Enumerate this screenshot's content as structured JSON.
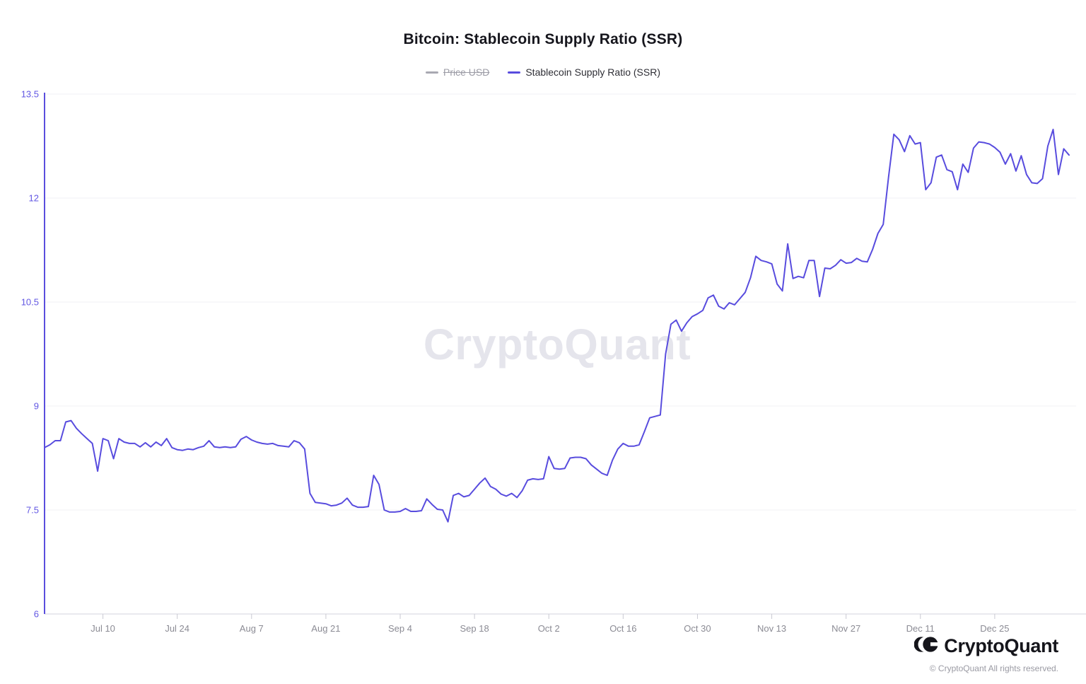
{
  "header": {
    "title": "Bitcoin: Stablecoin Supply Ratio (SSR)"
  },
  "legend": [
    {
      "label": "Price USD",
      "color": "#a9a9b2",
      "disabled": true
    },
    {
      "label": "Stablecoin Supply Ratio (SSR)",
      "color": "#584CDE",
      "disabled": false
    }
  ],
  "watermark": "CryptoQuant",
  "footer": {
    "brand": "CryptoQuant",
    "logo_icon": "cryptoquant-cq-mark",
    "copyright": "© CryptoQuant All rights reserved."
  },
  "colors": {
    "line": "#584CDE",
    "y_axis": "#5a4edd",
    "y_label": "#6257e3",
    "x_label": "#8b8b94",
    "grid": "#f1f1f5",
    "baseline": "#e2e2e8",
    "tick": "#c9c9d2"
  },
  "chart_data": {
    "type": "line",
    "title": "Bitcoin: Stablecoin Supply Ratio (SSR)",
    "series_name": "Stablecoin Supply Ratio (SSR)",
    "hidden_series": "Price USD",
    "frequency": "daily",
    "start_date": "Jun 29",
    "end_date": "Jan 8",
    "ylim": [
      6,
      13.5
    ],
    "y_ticks": [
      6,
      7.5,
      9,
      10.5,
      12,
      13.5
    ],
    "grid": "horizontal-only",
    "legend_position": "top-center",
    "x_ticks": [
      {
        "label": "Jul 10",
        "index": 11
      },
      {
        "label": "Jul 24",
        "index": 25
      },
      {
        "label": "Aug 7",
        "index": 39
      },
      {
        "label": "Aug 21",
        "index": 53
      },
      {
        "label": "Sep 4",
        "index": 67
      },
      {
        "label": "Sep 18",
        "index": 81
      },
      {
        "label": "Oct 2",
        "index": 95
      },
      {
        "label": "Oct 16",
        "index": 109
      },
      {
        "label": "Oct 30",
        "index": 123
      },
      {
        "label": "Nov 13",
        "index": 137
      },
      {
        "label": "Nov 27",
        "index": 151
      },
      {
        "label": "Dec 11",
        "index": 165
      },
      {
        "label": "Dec 25",
        "index": 179
      }
    ],
    "values": [
      8.4,
      8.44,
      8.5,
      8.5,
      8.77,
      8.79,
      8.68,
      8.6,
      8.53,
      8.46,
      8.06,
      8.53,
      8.5,
      8.24,
      8.53,
      8.48,
      8.46,
      8.46,
      8.41,
      8.47,
      8.41,
      8.48,
      8.43,
      8.53,
      8.4,
      8.37,
      8.36,
      8.38,
      8.37,
      8.4,
      8.42,
      8.5,
      8.41,
      8.4,
      8.41,
      8.4,
      8.41,
      8.52,
      8.56,
      8.51,
      8.48,
      8.46,
      8.45,
      8.46,
      8.43,
      8.42,
      8.41,
      8.5,
      8.47,
      8.38,
      7.74,
      7.61,
      7.6,
      7.59,
      7.56,
      7.57,
      7.6,
      7.67,
      7.57,
      7.54,
      7.54,
      7.55,
      8.0,
      7.87,
      7.5,
      7.47,
      7.47,
      7.48,
      7.52,
      7.48,
      7.48,
      7.49,
      7.66,
      7.58,
      7.51,
      7.5,
      7.33,
      7.71,
      7.74,
      7.69,
      7.71,
      7.8,
      7.89,
      7.96,
      7.84,
      7.8,
      7.73,
      7.7,
      7.74,
      7.68,
      7.78,
      7.93,
      7.95,
      7.94,
      7.95,
      8.27,
      8.1,
      8.09,
      8.1,
      8.25,
      8.26,
      8.26,
      8.24,
      8.15,
      8.09,
      8.03,
      8.0,
      8.22,
      8.38,
      8.46,
      8.42,
      8.42,
      8.44,
      8.63,
      8.83,
      8.85,
      8.87,
      9.75,
      10.18,
      10.24,
      10.08,
      10.2,
      10.29,
      10.33,
      10.38,
      10.56,
      10.6,
      10.44,
      10.4,
      10.49,
      10.46,
      10.55,
      10.64,
      10.85,
      11.16,
      11.1,
      11.08,
      11.05,
      10.76,
      10.66,
      11.34,
      10.84,
      10.87,
      10.85,
      11.1,
      11.1,
      10.58,
      10.99,
      10.98,
      11.03,
      11.11,
      11.06,
      11.07,
      11.13,
      11.09,
      11.08,
      11.26,
      11.49,
      11.62,
      12.3,
      12.92,
      12.84,
      12.67,
      12.9,
      12.78,
      12.8,
      12.12,
      12.22,
      12.59,
      12.62,
      12.41,
      12.38,
      12.12,
      12.49,
      12.37,
      12.72,
      12.81,
      12.8,
      12.78,
      12.73,
      12.66,
      12.49,
      12.64,
      12.39,
      12.61,
      12.34,
      12.22,
      12.21,
      12.28,
      12.75,
      12.99,
      12.34,
      12.71,
      12.62
    ]
  }
}
